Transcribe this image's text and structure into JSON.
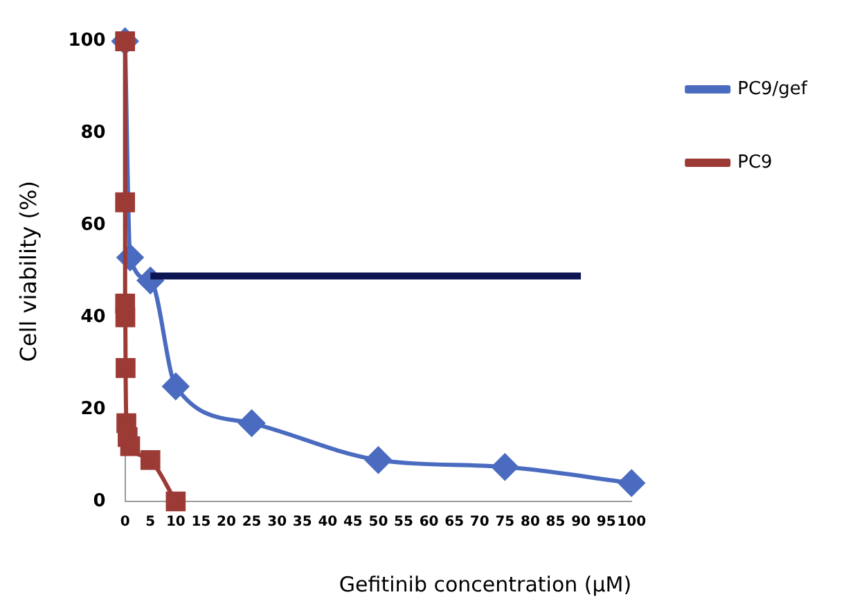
{
  "chart_data": {
    "type": "line",
    "xlabel": "Gefitinib concentration (µM)",
    "ylabel": "Cell viability (%)",
    "xlim": [
      0,
      100
    ],
    "xticks": [
      0,
      5,
      10,
      15,
      20,
      25,
      30,
      35,
      40,
      45,
      50,
      55,
      60,
      65,
      70,
      75,
      80,
      85,
      90,
      95,
      100
    ],
    "ylim": [
      0,
      100
    ],
    "yticks": [
      0,
      20,
      40,
      60,
      80,
      100
    ],
    "grid": false,
    "legend": "top right",
    "series": [
      {
        "name": "PC9/gef",
        "color": "#4a6bbf",
        "marker": "diamond",
        "x": [
          0,
          1,
          5,
          10,
          25,
          50,
          75,
          100
        ],
        "values": [
          100,
          53,
          48,
          25,
          17,
          9,
          7.5,
          4
        ]
      },
      {
        "name": "PC9",
        "color": "#9c3a36",
        "marker": "square",
        "x": [
          0,
          0.001,
          0.01,
          0.05,
          0.1,
          0.25,
          0.5,
          1,
          5,
          10
        ],
        "values": [
          100,
          65,
          43,
          40,
          29,
          17,
          14,
          12,
          9,
          0
        ]
      },
      {
        "color": "#0d1552",
        "marker": "none",
        "x": [
          5,
          90
        ],
        "values": [
          49,
          49
        ]
      }
    ]
  }
}
